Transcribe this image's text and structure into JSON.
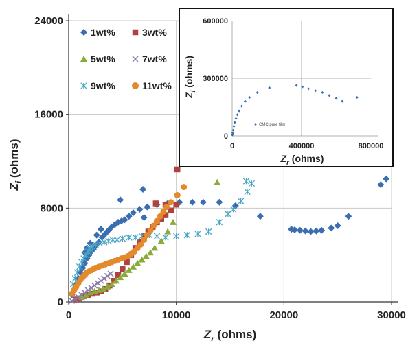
{
  "chart_data": [
    {
      "type": "scatter",
      "xlabel_main": "Z",
      "xlabel_sub": "r",
      "xlabel_unit": " (ohms)",
      "ylabel_main": "Z",
      "ylabel_sub": "i",
      "ylabel_unit": " (ohms)",
      "xlim": [
        0,
        30000
      ],
      "ylim": [
        0,
        24000
      ],
      "xticks": [
        0,
        10000,
        20000,
        30000
      ],
      "yticks": [
        0,
        8000,
        16000,
        24000
      ],
      "xtick_labels": [
        "0",
        "10000",
        "20000",
        "30000"
      ],
      "ytick_labels": [
        "0",
        "8000",
        "16000",
        "24000"
      ],
      "grid": true,
      "legend_position": "top-left",
      "series": [
        {
          "name": "1wt%",
          "marker": "diamond",
          "color": "#3a6eb0",
          "points": [
            [
              300,
              600
            ],
            [
              500,
              1000
            ],
            [
              700,
              1500
            ],
            [
              900,
              2000
            ],
            [
              1100,
              2500
            ],
            [
              1300,
              2900
            ],
            [
              1500,
              3300
            ],
            [
              1700,
              3700
            ],
            [
              1900,
              4000
            ],
            [
              2100,
              4300
            ],
            [
              2300,
              4500
            ],
            [
              2500,
              4800
            ],
            [
              2800,
              5100
            ],
            [
              3100,
              5500
            ],
            [
              3400,
              5800
            ],
            [
              3700,
              6100
            ],
            [
              4000,
              6400
            ],
            [
              4300,
              6600
            ],
            [
              4600,
              6800
            ],
            [
              4900,
              6900
            ],
            [
              5200,
              7000
            ],
            [
              5600,
              7300
            ],
            [
              6000,
              7600
            ],
            [
              6600,
              7900
            ],
            [
              7300,
              8100
            ],
            [
              8200,
              8300
            ],
            [
              9200,
              8400
            ],
            [
              10300,
              8500
            ],
            [
              11500,
              8500
            ],
            [
              12500,
              8500
            ],
            [
              14000,
              8500
            ],
            [
              15500,
              8200
            ],
            [
              17800,
              7300
            ],
            [
              20700,
              6200
            ],
            [
              21000,
              6150
            ],
            [
              21500,
              6100
            ],
            [
              22000,
              6050
            ],
            [
              22500,
              6000
            ],
            [
              23000,
              6050
            ],
            [
              23500,
              6100
            ],
            [
              24400,
              6300
            ],
            [
              25000,
              6500
            ],
            [
              26000,
              7300
            ],
            [
              29000,
              10000
            ],
            [
              29500,
              10500
            ],
            [
              4800,
              8700
            ],
            [
              6900,
              9600
            ],
            [
              7000,
              7200
            ],
            [
              3000,
              6200
            ],
            [
              2600,
              5700
            ],
            [
              2000,
              5000
            ],
            [
              1700,
              4600
            ],
            [
              1500,
              4200
            ]
          ]
        },
        {
          "name": "3wt%",
          "marker": "square",
          "color": "#b0413e",
          "points": [
            [
              700,
              200
            ],
            [
              1000,
              300
            ],
            [
              1400,
              500
            ],
            [
              1800,
              600
            ],
            [
              2200,
              700
            ],
            [
              2600,
              800
            ],
            [
              3000,
              900
            ],
            [
              3400,
              1100
            ],
            [
              3800,
              1400
            ],
            [
              4200,
              1800
            ],
            [
              4600,
              2300
            ],
            [
              5000,
              2800
            ],
            [
              5400,
              3400
            ],
            [
              5800,
              4000
            ],
            [
              6200,
              4600
            ],
            [
              6600,
              5100
            ],
            [
              7000,
              5600
            ],
            [
              7400,
              6000
            ],
            [
              7800,
              6400
            ],
            [
              8200,
              6800
            ],
            [
              8600,
              7100
            ],
            [
              9000,
              7400
            ],
            [
              9500,
              7800
            ],
            [
              10000,
              8300
            ],
            [
              10100,
              11300
            ],
            [
              9000,
              8300
            ],
            [
              8100,
              8400
            ]
          ]
        },
        {
          "name": "5wt%",
          "marker": "triangle",
          "color": "#8aaa3b",
          "points": [
            [
              1200,
              400
            ],
            [
              1600,
              600
            ],
            [
              2000,
              800
            ],
            [
              2400,
              900
            ],
            [
              2800,
              1000
            ],
            [
              3200,
              1100
            ],
            [
              3600,
              1300
            ],
            [
              4000,
              1500
            ],
            [
              4400,
              1800
            ],
            [
              4800,
              2100
            ],
            [
              5200,
              2400
            ],
            [
              5600,
              2700
            ],
            [
              6000,
              3000
            ],
            [
              6400,
              3300
            ],
            [
              6800,
              3600
            ],
            [
              7200,
              3900
            ],
            [
              7600,
              4200
            ],
            [
              8000,
              4600
            ],
            [
              8600,
              5200
            ],
            [
              9200,
              6000
            ],
            [
              9700,
              6800
            ],
            [
              13800,
              10200
            ]
          ]
        },
        {
          "name": "7wt%",
          "marker": "x",
          "color": "#8a7baa",
          "points": [
            [
              300,
              100
            ],
            [
              600,
              200
            ],
            [
              900,
              400
            ],
            [
              1200,
              600
            ],
            [
              1500,
              800
            ],
            [
              1800,
              1000
            ],
            [
              2100,
              1200
            ],
            [
              2400,
              1400
            ],
            [
              2700,
              1600
            ],
            [
              3000,
              1800
            ],
            [
              3300,
              2000
            ],
            [
              3600,
              2200
            ],
            [
              3900,
              2400
            ]
          ]
        },
        {
          "name": "9wt%",
          "marker": "asterisk",
          "color": "#4aa6c4",
          "points": [
            [
              400,
              1500
            ],
            [
              600,
              2000
            ],
            [
              800,
              2500
            ],
            [
              1000,
              3000
            ],
            [
              1200,
              3400
            ],
            [
              1400,
              3700
            ],
            [
              1600,
              4000
            ],
            [
              1800,
              4300
            ],
            [
              2000,
              4500
            ],
            [
              2200,
              4700
            ],
            [
              2500,
              4900
            ],
            [
              2900,
              5000
            ],
            [
              3300,
              5100
            ],
            [
              3700,
              5200
            ],
            [
              4100,
              5300
            ],
            [
              4500,
              5300
            ],
            [
              5000,
              5400
            ],
            [
              5600,
              5500
            ],
            [
              6200,
              5500
            ],
            [
              6800,
              5600
            ],
            [
              7500,
              5700
            ],
            [
              8200,
              5600
            ],
            [
              9000,
              5500
            ],
            [
              10000,
              5600
            ],
            [
              11000,
              5700
            ],
            [
              12000,
              5800
            ],
            [
              13000,
              6000
            ],
            [
              14000,
              6800
            ],
            [
              14800,
              7500
            ],
            [
              15300,
              7900
            ],
            [
              16000,
              8600
            ],
            [
              16600,
              9400
            ],
            [
              17000,
              10100
            ],
            [
              16500,
              10300
            ]
          ]
        },
        {
          "name": "11wt%",
          "marker": "circle",
          "color": "#e38a2c",
          "points": [
            [
              300,
              700
            ],
            [
              500,
              1000
            ],
            [
              700,
              1300
            ],
            [
              900,
              1600
            ],
            [
              1100,
              1900
            ],
            [
              1300,
              2100
            ],
            [
              1500,
              2300
            ],
            [
              1700,
              2500
            ],
            [
              1900,
              2600
            ],
            [
              2100,
              2700
            ],
            [
              2300,
              2800
            ],
            [
              2500,
              2900
            ],
            [
              2800,
              3000
            ],
            [
              3100,
              3100
            ],
            [
              3400,
              3200
            ],
            [
              3700,
              3300
            ],
            [
              4000,
              3400
            ],
            [
              4300,
              3500
            ],
            [
              4600,
              3600
            ],
            [
              4900,
              3700
            ],
            [
              5200,
              3800
            ],
            [
              5500,
              3900
            ],
            [
              5800,
              4100
            ],
            [
              6100,
              4300
            ],
            [
              6400,
              4600
            ],
            [
              6700,
              4900
            ],
            [
              7000,
              5300
            ],
            [
              7300,
              5700
            ],
            [
              7600,
              6100
            ],
            [
              7900,
              6500
            ],
            [
              8200,
              6900
            ],
            [
              8500,
              7300
            ],
            [
              8800,
              7700
            ],
            [
              9100,
              8100
            ],
            [
              9500,
              8500
            ],
            [
              10100,
              9100
            ],
            [
              10700,
              9800
            ]
          ]
        }
      ]
    },
    {
      "type": "scatter",
      "xlabel_main": "Z",
      "xlabel_sub": "r",
      "xlabel_unit": " (ohms)",
      "ylabel_main": "Z",
      "ylabel_sub": "i",
      "ylabel_unit": " (ohms)",
      "xlim": [
        0,
        800000
      ],
      "ylim": [
        0,
        600000
      ],
      "xticks": [
        0,
        400000,
        800000
      ],
      "yticks": [
        0,
        300000,
        600000
      ],
      "xtick_labels": [
        "0",
        "400000",
        "800000"
      ],
      "ytick_labels": [
        "0",
        "300000",
        "600000"
      ],
      "grid": true,
      "legend_position": "bottom-center",
      "series": [
        {
          "name": "CMC pure film",
          "marker": "diamond",
          "color": "#3a6eb0",
          "points": [
            [
              1000,
              5000
            ],
            [
              3000,
              15000
            ],
            [
              6000,
              30000
            ],
            [
              10000,
              50000
            ],
            [
              15000,
              70000
            ],
            [
              22000,
              90000
            ],
            [
              30000,
              110000
            ],
            [
              40000,
              130000
            ],
            [
              55000,
              155000
            ],
            [
              75000,
              180000
            ],
            [
              100000,
              200000
            ],
            [
              145000,
              225000
            ],
            [
              215000,
              250000
            ],
            [
              370000,
              262000
            ],
            [
              405000,
              255000
            ],
            [
              440000,
              245000
            ],
            [
              480000,
              235000
            ],
            [
              520000,
              225000
            ],
            [
              560000,
              210000
            ],
            [
              600000,
              195000
            ],
            [
              635000,
              180000
            ],
            [
              720000,
              200000
            ]
          ]
        }
      ]
    }
  ]
}
